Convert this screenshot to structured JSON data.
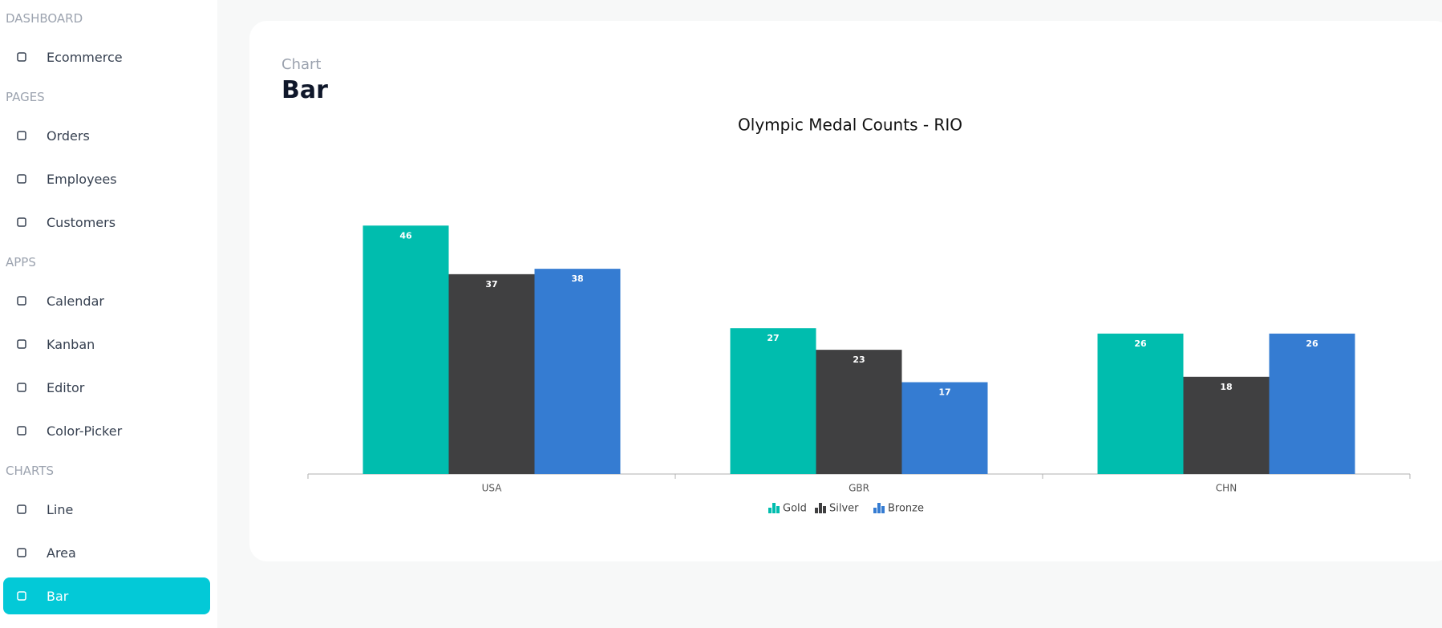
{
  "sidebar": {
    "sections": [
      {
        "title": "DASHBOARD",
        "items": [
          "Ecommerce"
        ]
      },
      {
        "title": "PAGES",
        "items": [
          "Orders",
          "Employees",
          "Customers"
        ]
      },
      {
        "title": "APPS",
        "items": [
          "Calendar",
          "Kanban",
          "Editor",
          "Color-Picker"
        ]
      },
      {
        "title": "CHARTS",
        "items": [
          "Line",
          "Area",
          "Bar"
        ]
      }
    ],
    "active": "Bar"
  },
  "header": {
    "category": "Chart",
    "title": "Bar"
  },
  "chart_data": {
    "type": "bar",
    "title": "Olympic Medal Counts - RIO",
    "categories": [
      "USA",
      "GBR",
      "CHN"
    ],
    "series": [
      {
        "name": "Gold",
        "color": "#00bdae",
        "values": [
          46,
          27,
          26
        ]
      },
      {
        "name": "Silver",
        "color": "#404041",
        "values": [
          37,
          23,
          18
        ]
      },
      {
        "name": "Bronze",
        "color": "#357cd2",
        "values": [
          38,
          17,
          26
        ]
      }
    ],
    "ylim": [
      0,
      60
    ],
    "grid": false,
    "legend": "bottom"
  }
}
